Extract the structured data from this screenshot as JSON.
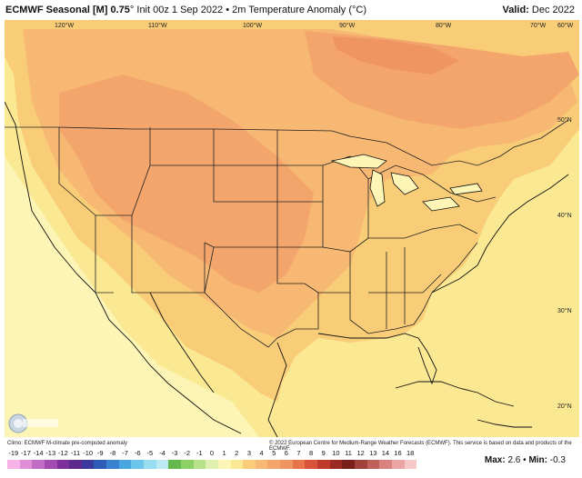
{
  "header": {
    "model": "ECMWF Seasonal [M] 0.75",
    "degree": "°",
    "rest": " Init 00z 1 Sep 2022 • 2m Temperature Anomaly (°C)",
    "valid_label": "Valid:",
    "valid_value": " Dec 2022"
  },
  "map": {
    "lon_labels": [
      "120°W",
      "110°W",
      "100°W",
      "90°W",
      "80°W",
      "70°W",
      "60°W"
    ],
    "lat_labels": [
      "50°N",
      "40°N",
      "30°N",
      "20°N"
    ],
    "colors": {
      "ocean": "#fcf5b5",
      "pale": "#fbe892",
      "light": "#f9cd77",
      "mid": "#f7b873",
      "warm": "#f4a56c",
      "warmer": "#ef9561",
      "border": "#222222"
    }
  },
  "footer": {
    "climo": "Climo: ECMWF M-climate pre-computed anomaly",
    "copyright": "© 2022 European Centre for Medium-Range Weather Forecasts (ECMWF). This service is based on data and products of the ECMWF."
  },
  "legend": {
    "labels": [
      "-19",
      "-17",
      "-14",
      "-13",
      "-12",
      "-11",
      "-10",
      "-9",
      "-8",
      "-7",
      "-6",
      "-5",
      "-4",
      "-3",
      "-2",
      "-1",
      "0",
      "1",
      "2",
      "3",
      "4",
      "5",
      "6",
      "7",
      "8",
      "9",
      "10",
      "11",
      "12",
      "13",
      "14",
      "16",
      "18"
    ],
    "colors": [
      "#f5b3e8",
      "#e08fd6",
      "#c06bc4",
      "#a24ab0",
      "#7d2f9c",
      "#5b2a8c",
      "#3b3a9c",
      "#2f5bb8",
      "#3a82d0",
      "#4aa6e0",
      "#6cc4ea",
      "#97dcef",
      "#bfe9f2",
      "#64b84c",
      "#8cd066",
      "#b8e28a",
      "#dff0b0",
      "#fcf5b5",
      "#fbe892",
      "#f9cd77",
      "#f7b873",
      "#f4a56c",
      "#ef9561",
      "#e8744a",
      "#d9533a",
      "#bf3a2c",
      "#9c2a22",
      "#7a1f1c",
      "#a0413c",
      "#c0605a",
      "#d98280",
      "#eaa5a4",
      "#f4c8c6"
    ]
  },
  "stats": {
    "max_label": "Max:",
    "max_value": "2.6",
    "sep": " • ",
    "min_label": "Min:",
    "min_value": "-0.3"
  },
  "logo": {
    "text": "WEATHERBELL"
  }
}
